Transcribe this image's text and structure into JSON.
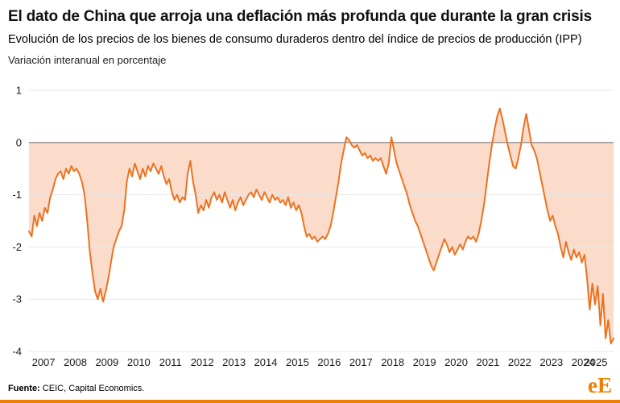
{
  "header": {
    "title": "El dato de China que arroja una deflación más profunda que durante la gran crisis",
    "subtitle": "Evolución de los precios de los bienes de consumo duraderos dentro del índice de precios de producción (IPP)",
    "note": "Variación interanual en porcentaje"
  },
  "footer": {
    "source_label": "Fuente:",
    "source_text": "CEIC, Capital Economics.",
    "logo": "eE"
  },
  "brand": {
    "accent": "#f07c00"
  },
  "chart_data": {
    "type": "line",
    "title": "El dato de China que arroja una deflación más profunda que durante la gran crisis",
    "subtitle": "Evolución de los precios de los bienes de consumo duraderos dentro del índice de precios de producción (IPP)",
    "ylabel": "Variación interanual en porcentaje",
    "frequency": "monthly",
    "x_start": "2007-01",
    "x_end": "2025-06",
    "x_tick_labels": [
      "2007",
      "2008",
      "2009",
      "2010",
      "2011",
      "2012",
      "2013",
      "2014",
      "2015",
      "2016",
      "2017",
      "2018",
      "2019",
      "2020",
      "2021",
      "2022",
      "2023",
      "2024",
      "2025"
    ],
    "yticks": [
      1,
      0,
      -1,
      -2,
      -3,
      -4
    ],
    "ylim": [
      -4,
      1
    ],
    "grid": true,
    "legend": false,
    "line_color": "#ed7220",
    "fill_color": "#fbdccb",
    "grid_color": "#e7e7e7",
    "zero_line_color": "#8f8f8f",
    "values": [
      -1.7,
      -1.8,
      -1.4,
      -1.6,
      -1.35,
      -1.5,
      -1.25,
      -1.35,
      -1.05,
      -0.9,
      -0.7,
      -0.6,
      -0.55,
      -0.7,
      -0.5,
      -0.6,
      -0.45,
      -0.55,
      -0.5,
      -0.6,
      -0.75,
      -1.0,
      -1.5,
      -2.1,
      -2.5,
      -2.85,
      -3.0,
      -2.8,
      -3.05,
      -2.85,
      -2.6,
      -2.3,
      -2.0,
      -1.85,
      -1.7,
      -1.6,
      -1.3,
      -0.75,
      -0.5,
      -0.65,
      -0.4,
      -0.55,
      -0.7,
      -0.5,
      -0.65,
      -0.45,
      -0.55,
      -0.4,
      -0.5,
      -0.6,
      -0.45,
      -0.65,
      -0.8,
      -0.7,
      -0.95,
      -1.1,
      -1.0,
      -1.15,
      -1.05,
      -1.1,
      -0.6,
      -0.35,
      -0.75,
      -1.0,
      -1.35,
      -1.2,
      -1.3,
      -1.1,
      -1.25,
      -1.05,
      -0.95,
      -1.1,
      -1.0,
      -1.15,
      -0.95,
      -1.1,
      -1.25,
      -1.1,
      -1.3,
      -1.15,
      -1.05,
      -1.2,
      -1.1,
      -1.0,
      -0.95,
      -1.05,
      -0.9,
      -1.0,
      -1.1,
      -0.95,
      -1.05,
      -1.15,
      -1.0,
      -1.1,
      -1.05,
      -1.15,
      -1.1,
      -1.2,
      -1.05,
      -1.25,
      -1.15,
      -1.3,
      -1.2,
      -1.35,
      -1.6,
      -1.8,
      -1.75,
      -1.85,
      -1.8,
      -1.9,
      -1.85,
      -1.8,
      -1.85,
      -1.75,
      -1.6,
      -1.35,
      -1.05,
      -0.75,
      -0.4,
      -0.15,
      0.1,
      0.05,
      -0.05,
      -0.1,
      -0.05,
      -0.15,
      -0.25,
      -0.2,
      -0.3,
      -0.25,
      -0.35,
      -0.3,
      -0.35,
      -0.3,
      -0.45,
      -0.6,
      -0.4,
      0.1,
      -0.15,
      -0.4,
      -0.55,
      -0.7,
      -0.85,
      -1.0,
      -1.2,
      -1.35,
      -1.5,
      -1.6,
      -1.75,
      -1.9,
      -2.05,
      -2.2,
      -2.35,
      -2.45,
      -2.3,
      -2.15,
      -2.0,
      -1.85,
      -1.95,
      -2.1,
      -2.0,
      -2.15,
      -2.05,
      -1.95,
      -2.05,
      -1.9,
      -1.8,
      -1.85,
      -1.8,
      -1.9,
      -1.75,
      -1.5,
      -1.2,
      -0.8,
      -0.4,
      -0.05,
      0.25,
      0.5,
      0.65,
      0.45,
      0.2,
      -0.05,
      -0.25,
      -0.45,
      -0.5,
      -0.3,
      -0.05,
      0.3,
      0.55,
      0.25,
      -0.05,
      -0.15,
      -0.3,
      -0.55,
      -0.8,
      -1.05,
      -1.3,
      -1.5,
      -1.4,
      -1.6,
      -1.75,
      -2.0,
      -2.2,
      -1.9,
      -2.1,
      -2.25,
      -2.05,
      -2.2,
      -2.1,
      -2.3,
      -2.15,
      -2.6,
      -3.2,
      -2.7,
      -3.1,
      -2.75,
      -3.5,
      -2.9,
      -3.75,
      -3.4,
      -3.85,
      -3.75
    ]
  }
}
